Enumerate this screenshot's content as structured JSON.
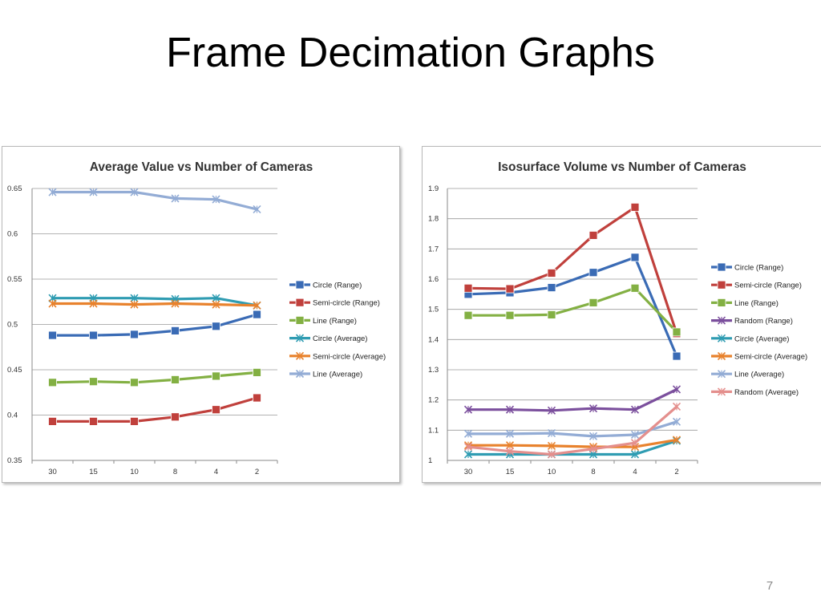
{
  "slide": {
    "title": "Frame Decimation Graphs",
    "page_number": "7"
  },
  "chart_data": [
    {
      "type": "line",
      "title": "Average Value vs Number of Cameras",
      "xlabel": "",
      "ylabel": "",
      "categories": [
        "30",
        "15",
        "10",
        "8",
        "4",
        "2"
      ],
      "ylim": [
        0.35,
        0.65
      ],
      "yticks": [
        "0.35",
        "0.4",
        "0.45",
        "0.5",
        "0.55",
        "0.6",
        "0.65"
      ],
      "grid": true,
      "legend_position": "right",
      "series": [
        {
          "name": "Circle (Range)",
          "values": [
            0.488,
            0.488,
            0.489,
            0.493,
            0.498,
            0.511
          ],
          "color": "#3a6bb5",
          "marker": "square"
        },
        {
          "name": "Semi-circle (Range)",
          "values": [
            0.393,
            0.393,
            0.393,
            0.398,
            0.406,
            0.419
          ],
          "color": "#c0403c",
          "marker": "square"
        },
        {
          "name": "Line (Range)",
          "values": [
            0.436,
            0.437,
            0.436,
            0.439,
            0.443,
            0.447
          ],
          "color": "#83b043",
          "marker": "square"
        },
        {
          "name": "Circle (Average)",
          "values": [
            0.529,
            0.529,
            0.529,
            0.528,
            0.529,
            0.521
          ],
          "color": "#2f9cb2",
          "marker": "x"
        },
        {
          "name": "Semi-circle (Average)",
          "values": [
            0.523,
            0.523,
            0.522,
            0.523,
            0.522,
            0.521
          ],
          "color": "#e8822d",
          "marker": "x"
        },
        {
          "name": "Line (Average)",
          "values": [
            0.646,
            0.646,
            0.646,
            0.639,
            0.638,
            0.627
          ],
          "color": "#93acd5",
          "marker": "x"
        }
      ]
    },
    {
      "type": "line",
      "title": "Isosurface Volume vs Number of Cameras",
      "xlabel": "",
      "ylabel": "",
      "categories": [
        "30",
        "15",
        "10",
        "8",
        "4",
        "2"
      ],
      "ylim": [
        1,
        1.9
      ],
      "yticks": [
        "1",
        "1.1",
        "1.2",
        "1.3",
        "1.4",
        "1.5",
        "1.6",
        "1.7",
        "1.8",
        "1.9"
      ],
      "grid": true,
      "legend_position": "right",
      "series": [
        {
          "name": "Circle (Range)",
          "values": [
            1.55,
            1.555,
            1.572,
            1.622,
            1.672,
            1.345
          ],
          "color": "#3a6bb5",
          "marker": "square"
        },
        {
          "name": "Semi-circle (Range)",
          "values": [
            1.57,
            1.568,
            1.62,
            1.745,
            1.838,
            1.42
          ],
          "color": "#c0403c",
          "marker": "square"
        },
        {
          "name": "Line (Range)",
          "values": [
            1.48,
            1.48,
            1.482,
            1.522,
            1.57,
            1.425
          ],
          "color": "#83b043",
          "marker": "square"
        },
        {
          "name": "Random (Range)",
          "values": [
            1.168,
            1.168,
            1.165,
            1.172,
            1.168,
            1.235
          ],
          "color": "#7b4f9d",
          "marker": "x"
        },
        {
          "name": "Circle (Average)",
          "values": [
            1.02,
            1.02,
            1.02,
            1.02,
            1.02,
            1.065
          ],
          "color": "#2f9cb2",
          "marker": "x"
        },
        {
          "name": "Semi-circle (Average)",
          "values": [
            1.05,
            1.05,
            1.048,
            1.045,
            1.045,
            1.068
          ],
          "color": "#e8822d",
          "marker": "x"
        },
        {
          "name": "Line (Average)",
          "values": [
            1.088,
            1.088,
            1.09,
            1.08,
            1.085,
            1.128
          ],
          "color": "#93acd5",
          "marker": "x"
        },
        {
          "name": "Random (Average)",
          "values": [
            1.045,
            1.03,
            1.02,
            1.038,
            1.058,
            1.178
          ],
          "color": "#e48f8d",
          "marker": "x"
        }
      ]
    }
  ]
}
